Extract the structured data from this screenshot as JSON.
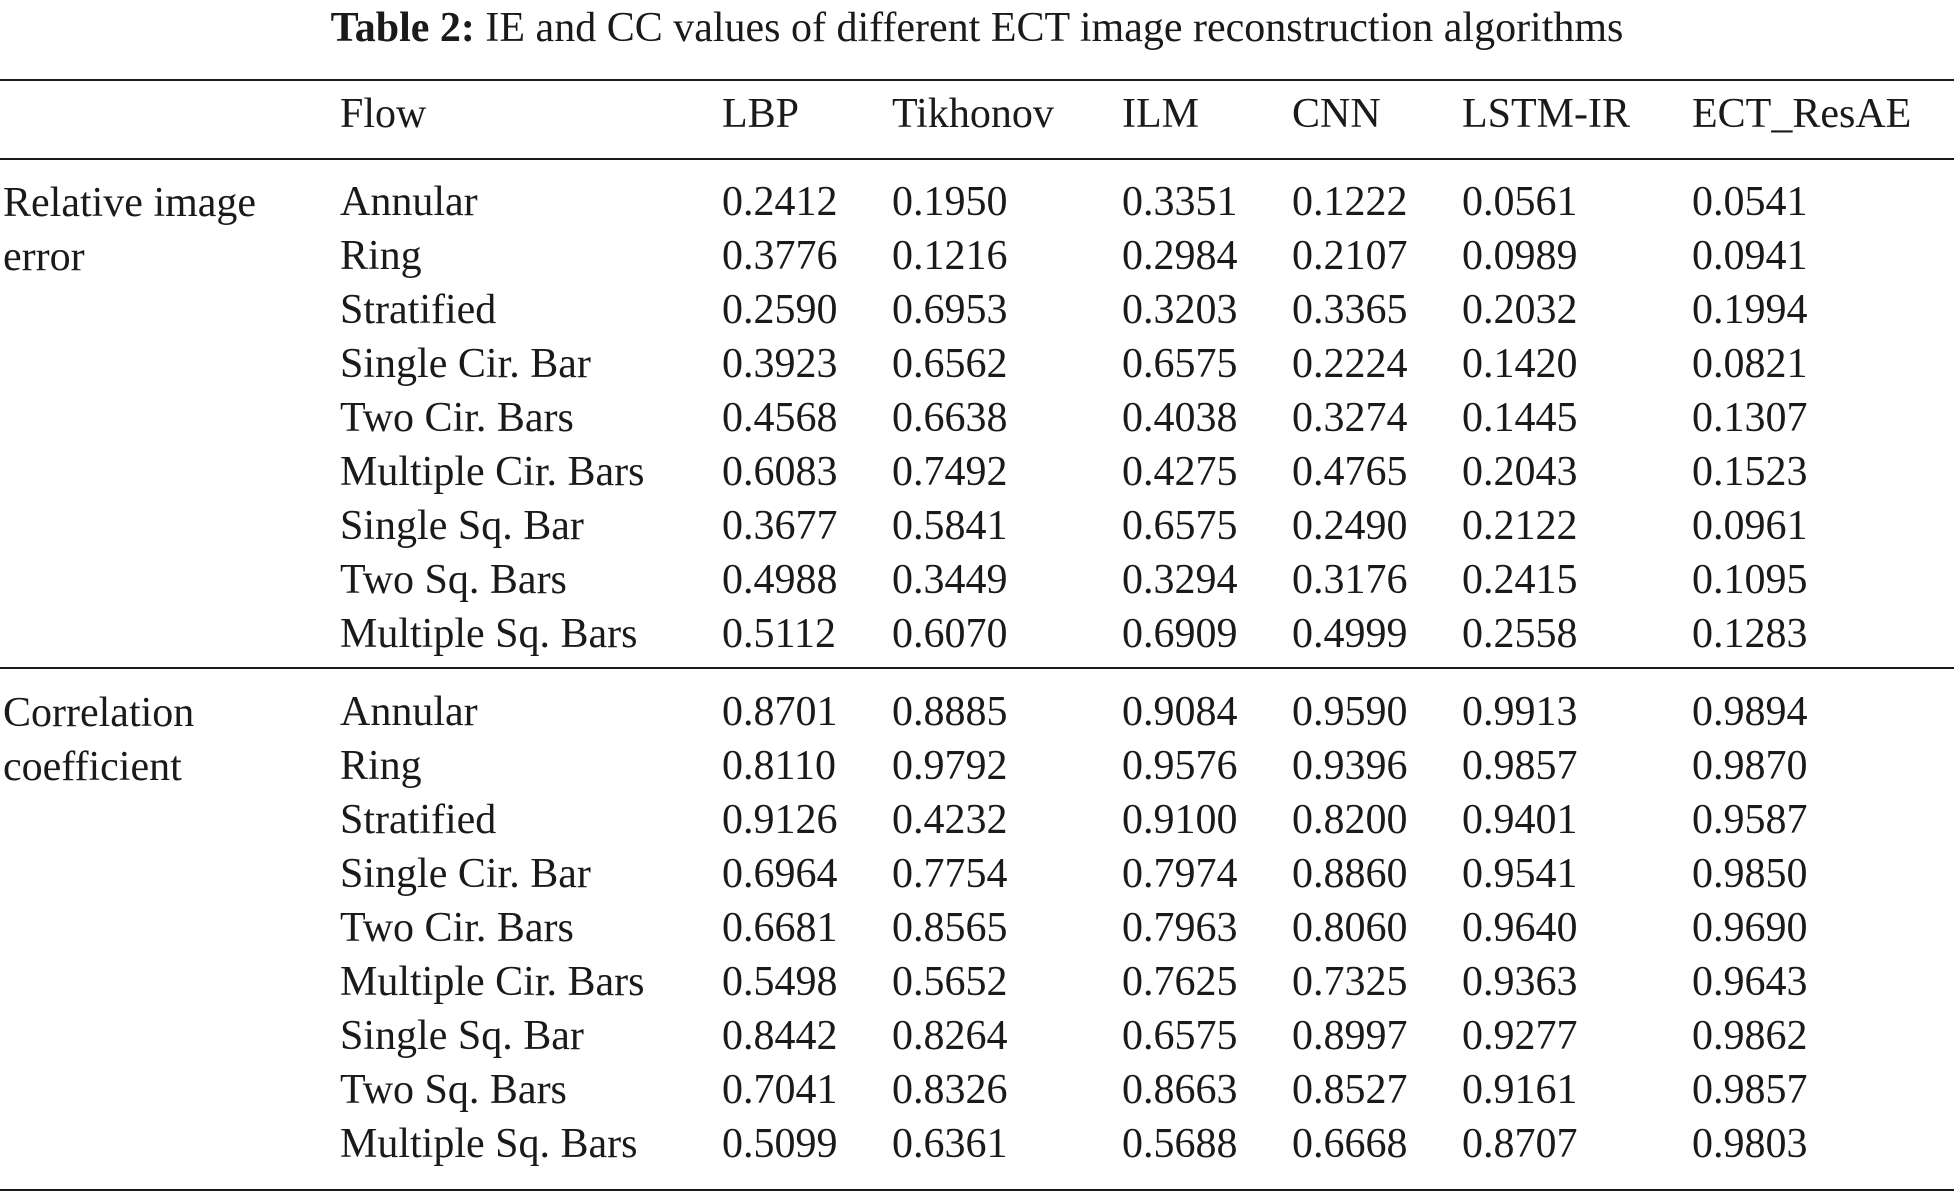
{
  "caption": {
    "label": "Table 2:",
    "text": "IE and CC values of different ECT image reconstruction algorithms"
  },
  "columns": [
    "Flow",
    "LBP",
    "Tikhonov",
    "ILM",
    "CNN",
    "LSTM-IR",
    "ECT_ResAE"
  ],
  "groups": [
    {
      "label": "Relative image error",
      "rows": [
        {
          "flow": "Annular",
          "values": [
            "0.2412",
            "0.1950",
            "0.3351",
            "0.1222",
            "0.0561",
            "0.0541"
          ]
        },
        {
          "flow": "Ring",
          "values": [
            "0.3776",
            "0.1216",
            "0.2984",
            "0.2107",
            "0.0989",
            "0.0941"
          ]
        },
        {
          "flow": "Stratified",
          "values": [
            "0.2590",
            "0.6953",
            "0.3203",
            "0.3365",
            "0.2032",
            "0.1994"
          ]
        },
        {
          "flow": "Single Cir. Bar",
          "values": [
            "0.3923",
            "0.6562",
            "0.6575",
            "0.2224",
            "0.1420",
            "0.0821"
          ]
        },
        {
          "flow": "Two Cir. Bars",
          "values": [
            "0.4568",
            "0.6638",
            "0.4038",
            "0.3274",
            "0.1445",
            "0.1307"
          ]
        },
        {
          "flow": "Multiple Cir. Bars",
          "values": [
            "0.6083",
            "0.7492",
            "0.4275",
            "0.4765",
            "0.2043",
            "0.1523"
          ]
        },
        {
          "flow": "Single Sq. Bar",
          "values": [
            "0.3677",
            "0.5841",
            "0.6575",
            "0.2490",
            "0.2122",
            "0.0961"
          ]
        },
        {
          "flow": "Two Sq. Bars",
          "values": [
            "0.4988",
            "0.3449",
            "0.3294",
            "0.3176",
            "0.2415",
            "0.1095"
          ]
        },
        {
          "flow": "Multiple Sq. Bars",
          "values": [
            "0.5112",
            "0.6070",
            "0.6909",
            "0.4999",
            "0.2558",
            "0.1283"
          ]
        }
      ]
    },
    {
      "label": "Correlation coefficient",
      "rows": [
        {
          "flow": "Annular",
          "values": [
            "0.8701",
            "0.8885",
            "0.9084",
            "0.9590",
            "0.9913",
            "0.9894"
          ]
        },
        {
          "flow": "Ring",
          "values": [
            "0.8110",
            "0.9792",
            "0.9576",
            "0.9396",
            "0.9857",
            "0.9870"
          ]
        },
        {
          "flow": "Stratified",
          "values": [
            "0.9126",
            "0.4232",
            "0.9100",
            "0.8200",
            "0.9401",
            "0.9587"
          ]
        },
        {
          "flow": "Single Cir. Bar",
          "values": [
            "0.6964",
            "0.7754",
            "0.7974",
            "0.8860",
            "0.9541",
            "0.9850"
          ]
        },
        {
          "flow": "Two Cir. Bars",
          "values": [
            "0.6681",
            "0.8565",
            "0.7963",
            "0.8060",
            "0.9640",
            "0.9690"
          ]
        },
        {
          "flow": "Multiple Cir. Bars",
          "values": [
            "0.5498",
            "0.5652",
            "0.7625",
            "0.7325",
            "0.9363",
            "0.9643"
          ]
        },
        {
          "flow": "Single Sq. Bar",
          "values": [
            "0.8442",
            "0.8264",
            "0.6575",
            "0.8997",
            "0.9277",
            "0.9862"
          ]
        },
        {
          "flow": "Two Sq. Bars",
          "values": [
            "0.7041",
            "0.8326",
            "0.8663",
            "0.8527",
            "0.9161",
            "0.9857"
          ]
        },
        {
          "flow": "Multiple Sq. Bars",
          "values": [
            "0.5099",
            "0.6361",
            "0.5688",
            "0.6668",
            "0.8707",
            "0.9803"
          ]
        }
      ]
    }
  ]
}
